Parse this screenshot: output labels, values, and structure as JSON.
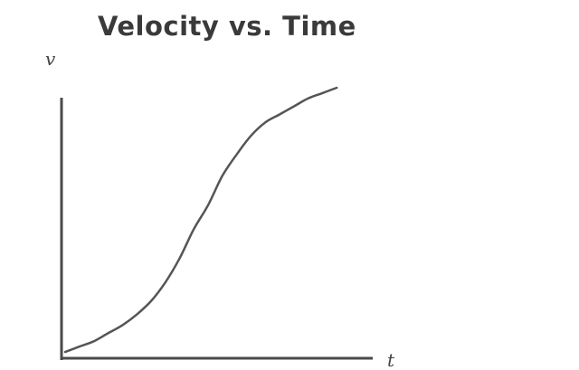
{
  "chart_data": {
    "type": "line",
    "title": "Velocity vs. Time",
    "xlabel": "t",
    "ylabel": "v",
    "xlim": [
      0,
      100
    ],
    "ylim": [
      0,
      100
    ],
    "grid": false,
    "series": [
      {
        "x": [
          0,
          5,
          10,
          15,
          20,
          25,
          30,
          35,
          40,
          45,
          50,
          55,
          60,
          65,
          70,
          75,
          80,
          85,
          90,
          95
        ],
        "y": [
          1,
          3,
          5,
          8,
          11,
          15,
          20,
          27,
          36,
          47,
          56,
          67,
          75,
          82,
          87,
          90,
          93,
          96,
          98,
          100
        ],
        "color": "#555555"
      }
    ]
  }
}
